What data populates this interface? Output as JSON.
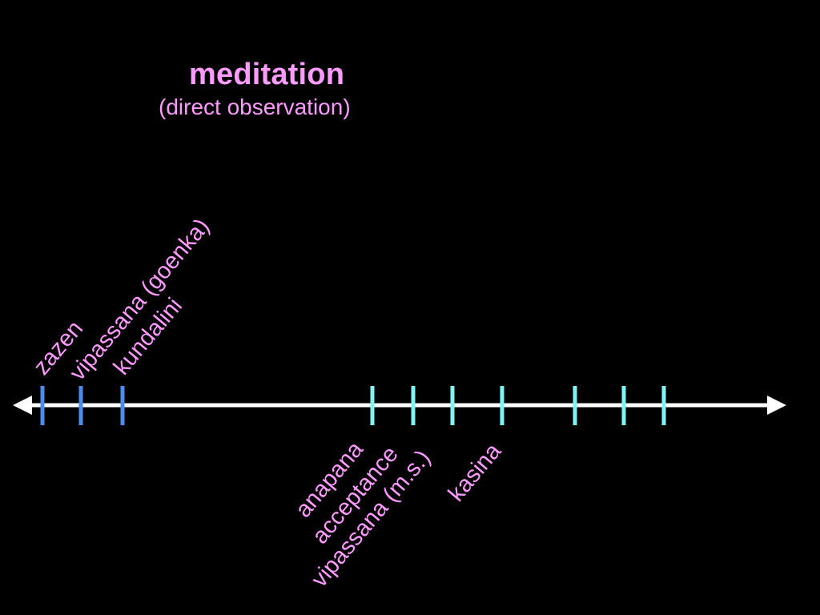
{
  "title": "meditation",
  "subtitle": "(direct observation)",
  "colors": {
    "background": "#000000",
    "text": "#ff9bff",
    "axis": "#ffffff",
    "group_a_ticks": "#4a8cf0",
    "group_b_ticks": "#7ef4f4"
  },
  "upper_labels": [
    "zazen",
    "vipassana (goenka)",
    "kundalini"
  ],
  "lower_labels": [
    "anapana",
    "acceptance",
    "vipassana (m.s.)",
    "kasina"
  ],
  "tick_groups": [
    {
      "name": "above-axis group",
      "count": 3,
      "color_key": "group_a_ticks"
    },
    {
      "name": "below-axis group",
      "count": 7,
      "color_key": "group_b_ticks"
    }
  ]
}
